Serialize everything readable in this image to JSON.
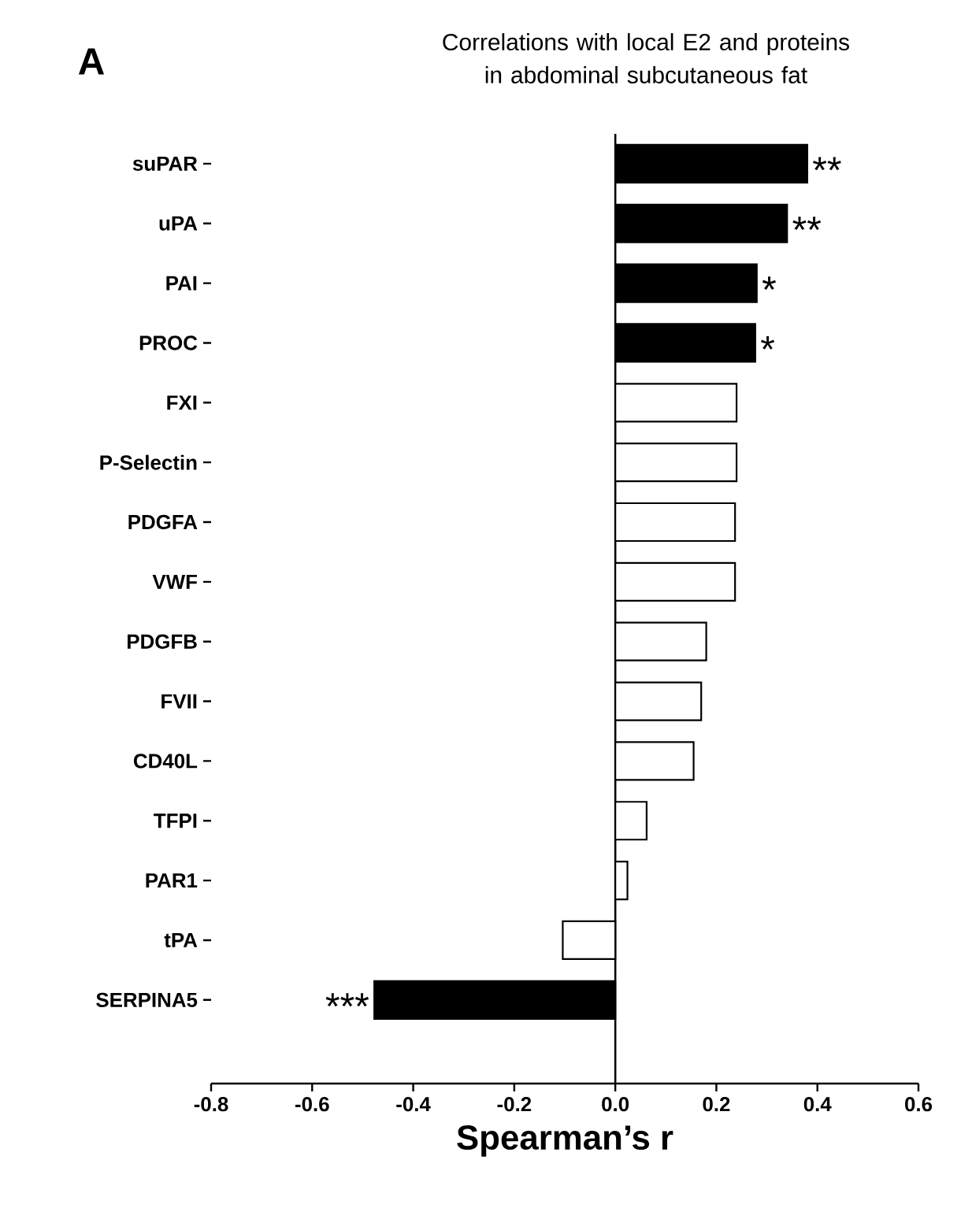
{
  "chart_data": {
    "type": "bar",
    "orientation": "horizontal",
    "title": "Correlations with local E2 and proteins in abdominal subcutaneous fat",
    "xlabel": "Spearman’s r",
    "categories": [
      "suPAR",
      "uPA",
      "PAI",
      "PROC",
      "FXI",
      "P-Selectin",
      "PDGFA",
      "VWF",
      "PDGFB",
      "FVII",
      "CD40L",
      "TFPI",
      "PAR1",
      "tPA",
      "SERPINA5"
    ],
    "values": [
      0.38,
      0.34,
      0.28,
      0.277,
      0.24,
      0.24,
      0.237,
      0.237,
      0.18,
      0.17,
      0.155,
      0.062,
      0.024,
      -0.104,
      -0.477
    ],
    "colors": [
      "#000000",
      "#000000",
      "#000000",
      "#000000",
      "#ffffff",
      "#ffffff",
      "#ffffff",
      "#ffffff",
      "#ffffff",
      "#ffffff",
      "#ffffff",
      "#ffffff",
      "#ffffff",
      "#ffffff",
      "#000000"
    ],
    "xlim": [
      -0.8,
      0.6
    ],
    "xticks": [
      -0.8,
      -0.6,
      -0.4,
      -0.2,
      {
        "value": 0,
        "label": "0.0"
      },
      0.2,
      0.4,
      0.6
    ],
    "annotations": [
      "A",
      {
        "text": "**",
        "x": 0.38,
        "y": "suPAR"
      },
      {
        "text": "**",
        "x": 0.34,
        "y": "uPA"
      },
      {
        "text": "*",
        "x": 0.28,
        "y": "PAI"
      },
      {
        "text": "*",
        "x": 0.277,
        "y": "PROC"
      },
      {
        "text": "***",
        "x": -0.477,
        "y": "SERPINA5"
      }
    ]
  }
}
